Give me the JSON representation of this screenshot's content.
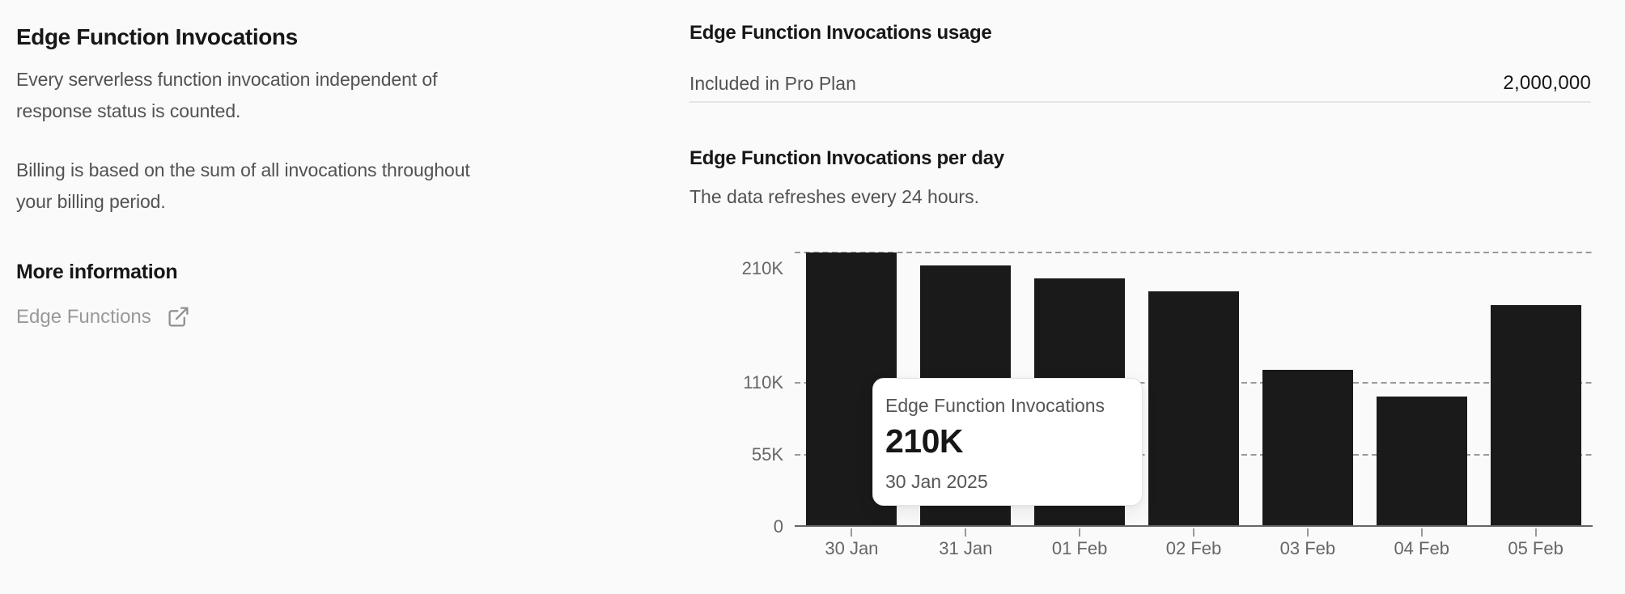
{
  "left_panel": {
    "title": "Edge Function Invocations",
    "paragraphs": [
      {
        "lines": [
          "Every serverless function invocation independent of",
          "response status is counted."
        ]
      },
      {
        "lines": [
          "Billing is based on the sum of all invocations throughout",
          "your billing period."
        ]
      }
    ],
    "more_info_heading": "More information",
    "link": {
      "label": "Edge Functions",
      "icon": "external-link-icon"
    }
  },
  "usage_panel": {
    "title": "Edge Function Invocations usage",
    "included_label": "Included in Pro Plan",
    "included_value": "2,000,000",
    "chart_title": "Edge Function Invocations per day",
    "chart_subtitle": "The data refreshes every 24 hours."
  },
  "chart_data": {
    "type": "bar",
    "title": "Edge Function Invocations per day",
    "subtitle": "The data refreshes every 24 hours.",
    "categories": [
      "30 Jan",
      "31 Jan",
      "01 Feb",
      "02 Feb",
      "03 Feb",
      "04 Feb",
      "05 Feb"
    ],
    "values": [
      210000,
      200000,
      190000,
      180000,
      120000,
      100000,
      170000
    ],
    "value_labels": [
      "210K",
      "200K",
      "190K",
      "180K",
      "120K",
      "100K",
      "170K"
    ],
    "xlabel": "",
    "ylabel": "",
    "ylim": [
      0,
      224000
    ],
    "y_ticks": [
      {
        "label": "210K",
        "value": 210000,
        "label_dy": 20
      },
      {
        "label": "110K",
        "value": 110000,
        "label_dy": 0
      },
      {
        "label": "55K",
        "value": 55000,
        "label_dy": 0
      },
      {
        "label": "0",
        "value": 0,
        "label_dy": 0
      }
    ],
    "gridline_values": [
      210000,
      110000,
      55000
    ],
    "gridline_style": "dashed",
    "legend": "none",
    "bar_color": "#1a1a1a",
    "axis_color": "#666666",
    "tick_label_color": "#666666",
    "tooltip": {
      "label": "Edge Function Invocations",
      "value": "210K",
      "date": "30 Jan 2025",
      "category": "30 Jan"
    }
  },
  "colors": {
    "background": "#fafafa",
    "heading_text": "#171717",
    "body_text": "#525252",
    "muted_link": "#999999",
    "divider": "#e5e5e5",
    "gridline": "#999999",
    "bar": "#1a1a1a"
  }
}
